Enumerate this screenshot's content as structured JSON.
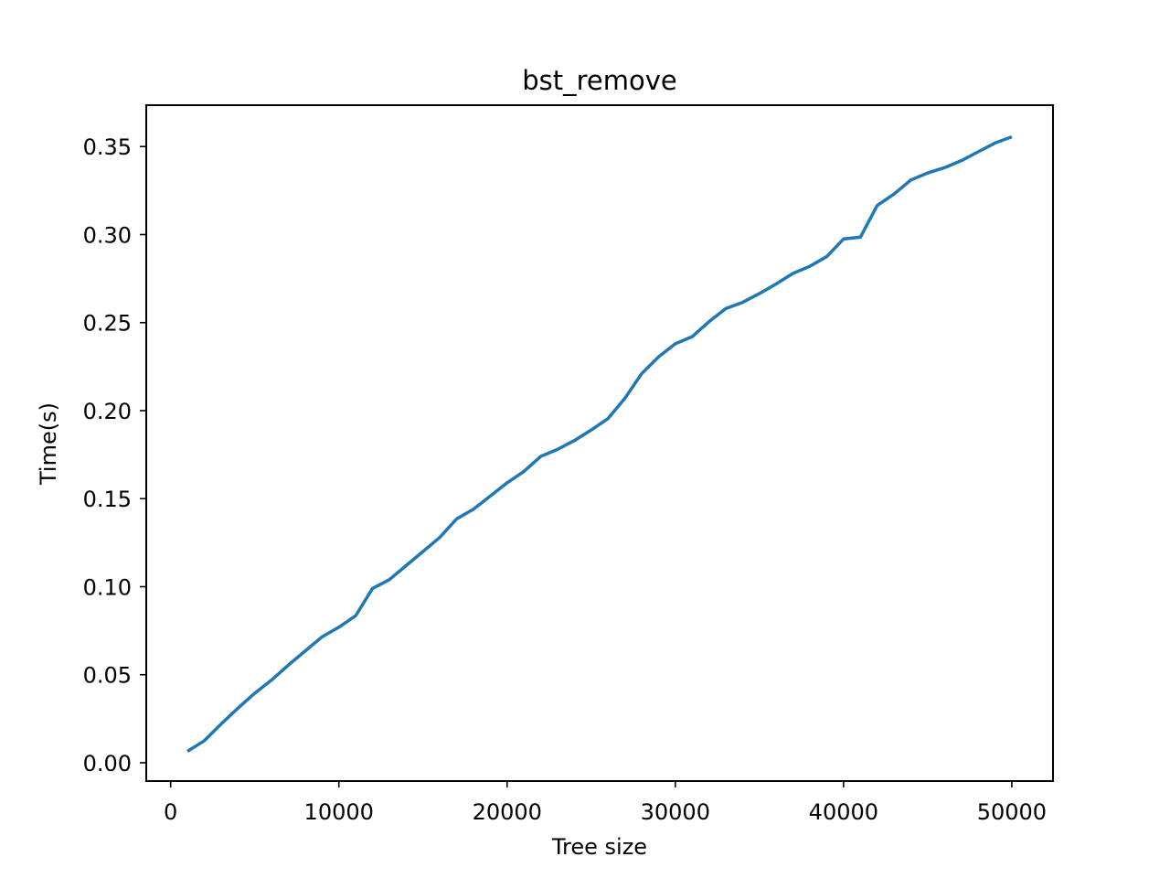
{
  "chart_data": {
    "type": "line",
    "title": "bst_remove",
    "xlabel": "Tree size",
    "ylabel": "Time(s)",
    "xlim": [
      -1450,
      52450
    ],
    "ylim": [
      -0.0104,
      0.3735
    ],
    "xticks": [
      0,
      10000,
      20000,
      30000,
      40000,
      50000
    ],
    "xtick_labels": [
      "0",
      "10000",
      "20000",
      "30000",
      "40000",
      "50000"
    ],
    "yticks": [
      0.0,
      0.05,
      0.1,
      0.15,
      0.2,
      0.25,
      0.3,
      0.35
    ],
    "ytick_labels": [
      "0.00",
      "0.05",
      "0.10",
      "0.15",
      "0.20",
      "0.25",
      "0.30",
      "0.35"
    ],
    "grid": false,
    "legend": "none",
    "series": [
      {
        "color": "#1f77b4",
        "x": [
          1000,
          2000,
          3000,
          4000,
          5000,
          6000,
          7000,
          8000,
          9000,
          10000,
          11000,
          12000,
          13000,
          14000,
          15000,
          16000,
          17000,
          18000,
          19000,
          20000,
          21000,
          22000,
          23000,
          24000,
          25000,
          26000,
          27000,
          28000,
          29000,
          30000,
          31000,
          32000,
          33000,
          34000,
          35000,
          36000,
          37000,
          38000,
          39000,
          40000,
          41000,
          42000,
          43000,
          44000,
          45000,
          46000,
          47000,
          48000,
          49000,
          50000
        ],
        "values": [
          0.0065,
          0.0125,
          0.022,
          0.031,
          0.0395,
          0.047,
          0.0555,
          0.0635,
          0.0715,
          0.077,
          0.0835,
          0.099,
          0.104,
          0.112,
          0.12,
          0.128,
          0.1385,
          0.144,
          0.1515,
          0.159,
          0.1655,
          0.174,
          0.178,
          0.183,
          0.189,
          0.1955,
          0.207,
          0.221,
          0.2305,
          0.238,
          0.242,
          0.2505,
          0.258,
          0.2615,
          0.2665,
          0.272,
          0.278,
          0.282,
          0.2875,
          0.2975,
          0.2985,
          0.3165,
          0.323,
          0.331,
          0.335,
          0.338,
          0.342,
          0.347,
          0.352,
          0.3555
        ]
      }
    ]
  }
}
